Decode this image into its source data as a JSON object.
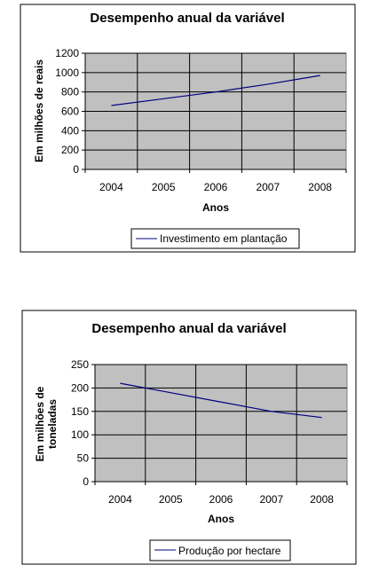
{
  "chart_data": [
    {
      "type": "line",
      "title": "Desempenho anual da variável",
      "xlabel": "Anos",
      "ylabel": "Em milhões de reais",
      "categories": [
        "2004",
        "2005",
        "2006",
        "2007",
        "2008"
      ],
      "ylim": [
        0,
        1200
      ],
      "yticks": [
        0,
        200,
        400,
        600,
        800,
        1000,
        1200
      ],
      "grid": true,
      "legend_position": "bottom",
      "series": [
        {
          "name": "Investimento em plantação",
          "values": [
            660,
            730,
            800,
            880,
            970
          ],
          "color": "#000080"
        }
      ],
      "plot_background": "#c0c0c0"
    },
    {
      "type": "line",
      "title": "Desempenho anual da variável",
      "xlabel": "Anos",
      "ylabel": [
        "Em milhões de",
        "toneladas"
      ],
      "categories": [
        "2004",
        "2005",
        "2006",
        "2007",
        "2008"
      ],
      "ylim": [
        0,
        250
      ],
      "yticks": [
        0,
        50,
        100,
        150,
        200,
        250
      ],
      "grid": true,
      "legend_position": "bottom",
      "series": [
        {
          "name": "Produção por hectare",
          "values": [
            210,
            190,
            170,
            150,
            137
          ],
          "color": "#000080"
        }
      ],
      "plot_background": "#c0c0c0"
    }
  ]
}
